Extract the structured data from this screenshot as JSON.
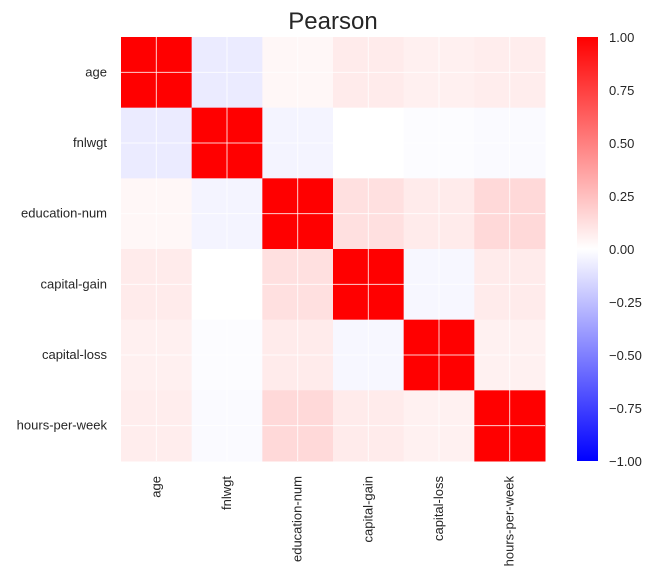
{
  "chart_data": {
    "type": "heatmap",
    "title": "Pearson",
    "labels": [
      "age",
      "fnlwgt",
      "education-num",
      "capital-gain",
      "capital-loss",
      "hours-per-week"
    ],
    "values": [
      [
        1.0,
        -0.077,
        0.031,
        0.078,
        0.058,
        0.069
      ],
      [
        -0.077,
        1.0,
        -0.043,
        0.0004,
        -0.01,
        -0.019
      ],
      [
        0.031,
        -0.043,
        1.0,
        0.123,
        0.08,
        0.148
      ],
      [
        0.078,
        0.0004,
        0.123,
        1.0,
        -0.032,
        0.078
      ],
      [
        0.058,
        -0.01,
        0.08,
        -0.032,
        1.0,
        0.054
      ],
      [
        0.069,
        -0.019,
        0.148,
        0.078,
        0.054,
        1.0
      ]
    ],
    "colormap": {
      "name": "bwr",
      "min_color": "#0000ff",
      "mid_color": "#ffffff",
      "max_color": "#ff0000"
    },
    "vmin": -1.0,
    "vmax": 1.0,
    "colorbar_ticks": [
      "1.00",
      "0.75",
      "0.50",
      "0.25",
      "0.00",
      "−0.25",
      "−0.50",
      "−0.75",
      "−1.00"
    ],
    "colorbar_tick_values": [
      1.0,
      0.75,
      0.5,
      0.25,
      0.0,
      -0.25,
      -0.5,
      -0.75,
      -1.0
    ],
    "grid": true
  }
}
